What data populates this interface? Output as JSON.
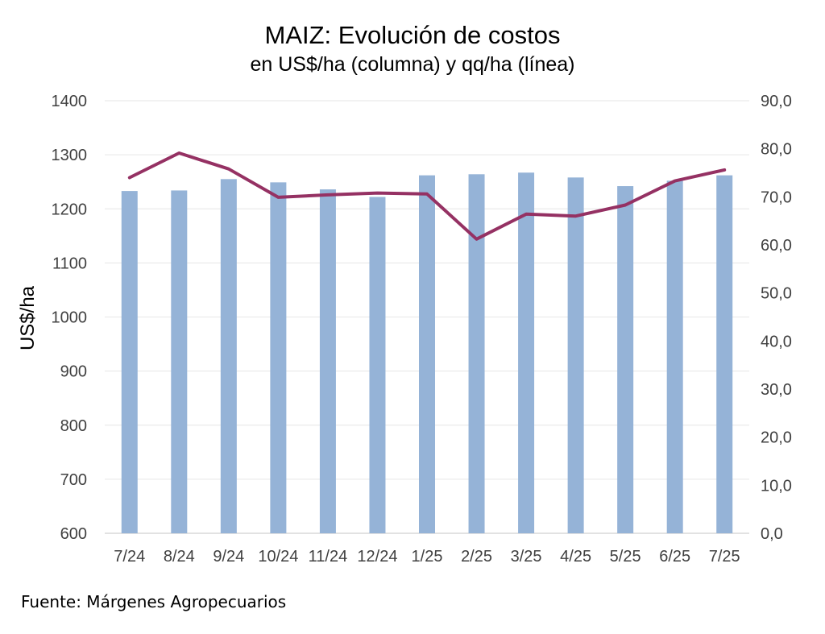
{
  "title": "MAIZ: Evolución de costos",
  "subtitle": "en US$/ha (columna) y qq/ha (línea)",
  "source": "Fuente: Márgenes Agropecuarios",
  "colors": {
    "bars": "#95b3d7",
    "line": "#953163",
    "gridline": "#e6e6e6",
    "axis_line": "#d9d9d9"
  },
  "chart_data": {
    "type": "bar",
    "categories": [
      "7/24",
      "8/24",
      "9/24",
      "10/24",
      "11/24",
      "12/24",
      "1/25",
      "2/25",
      "3/25",
      "4/25",
      "5/25",
      "6/25",
      "7/25"
    ],
    "series": [
      {
        "type": "bar",
        "axis": "left",
        "values": [
          1233,
          1234,
          1255,
          1249,
          1236,
          1222,
          1262,
          1264,
          1267,
          1258,
          1242,
          1252,
          1262
        ]
      },
      {
        "type": "line",
        "axis": "right",
        "values": [
          74.0,
          79.1,
          75.8,
          69.9,
          70.4,
          70.8,
          70.6,
          61.2,
          66.4,
          66.0,
          68.3,
          73.3,
          75.6
        ]
      }
    ],
    "ylabel": "US$/ha",
    "ylim": [
      600,
      1400
    ],
    "y_ticks": [
      "600",
      "700",
      "800",
      "900",
      "1000",
      "1100",
      "1200",
      "1300",
      "1400"
    ],
    "y2lim": [
      0,
      90
    ],
    "y2_ticks": [
      "0,0",
      "10,0",
      "20,0",
      "30,0",
      "40,0",
      "50,0",
      "60,0",
      "70,0",
      "80,0",
      "90,0"
    ],
    "grid": true,
    "legend": "none"
  }
}
